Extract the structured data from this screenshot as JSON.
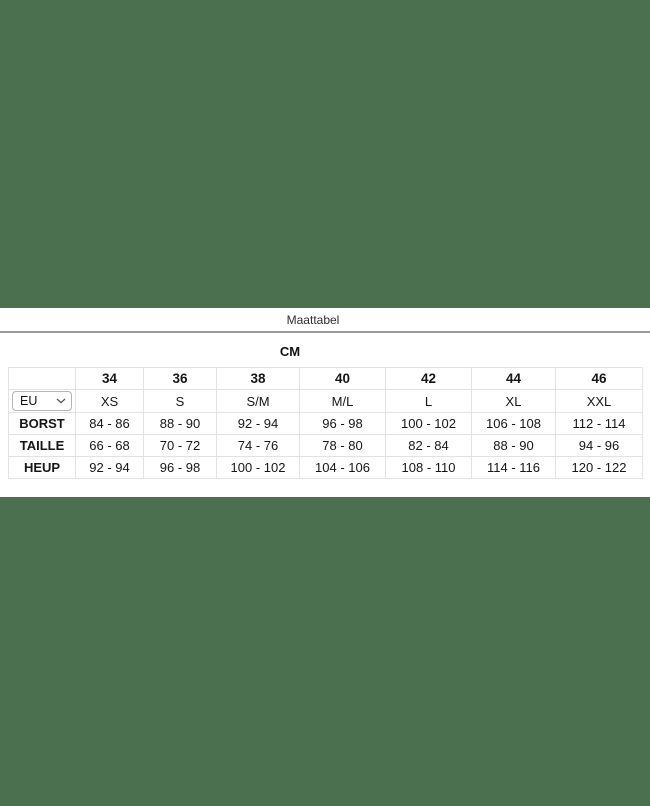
{
  "modal": {
    "title": "Maattabel",
    "unit_label": "CM",
    "eu_select": {
      "value": "EU"
    },
    "table": {
      "size_numbers": [
        "34",
        "36",
        "38",
        "40",
        "42",
        "44",
        "46"
      ],
      "size_letters": [
        "XS",
        "S",
        "S/M",
        "M/L",
        "L",
        "XL",
        "XXL"
      ],
      "rows": [
        {
          "label": "BORST",
          "values": [
            "84 - 86",
            "88 - 90",
            "92 - 94",
            "96 - 98",
            "100 - 102",
            "106 - 108",
            "112 - 114"
          ]
        },
        {
          "label": "TAILLE",
          "values": [
            "66 - 68",
            "70 - 72",
            "74 - 76",
            "78 - 80",
            "82 - 84",
            "88 - 90",
            "94 - 96"
          ]
        },
        {
          "label": "HEUP",
          "values": [
            "92 - 94",
            "96 - 98",
            "100 - 102",
            "104 - 106",
            "108 - 110",
            "114 - 116",
            "120 - 122"
          ]
        }
      ]
    }
  },
  "colors": {
    "background": "#4a7050",
    "divider": "#9a9a9a",
    "table_border": "#e2e2e2"
  }
}
